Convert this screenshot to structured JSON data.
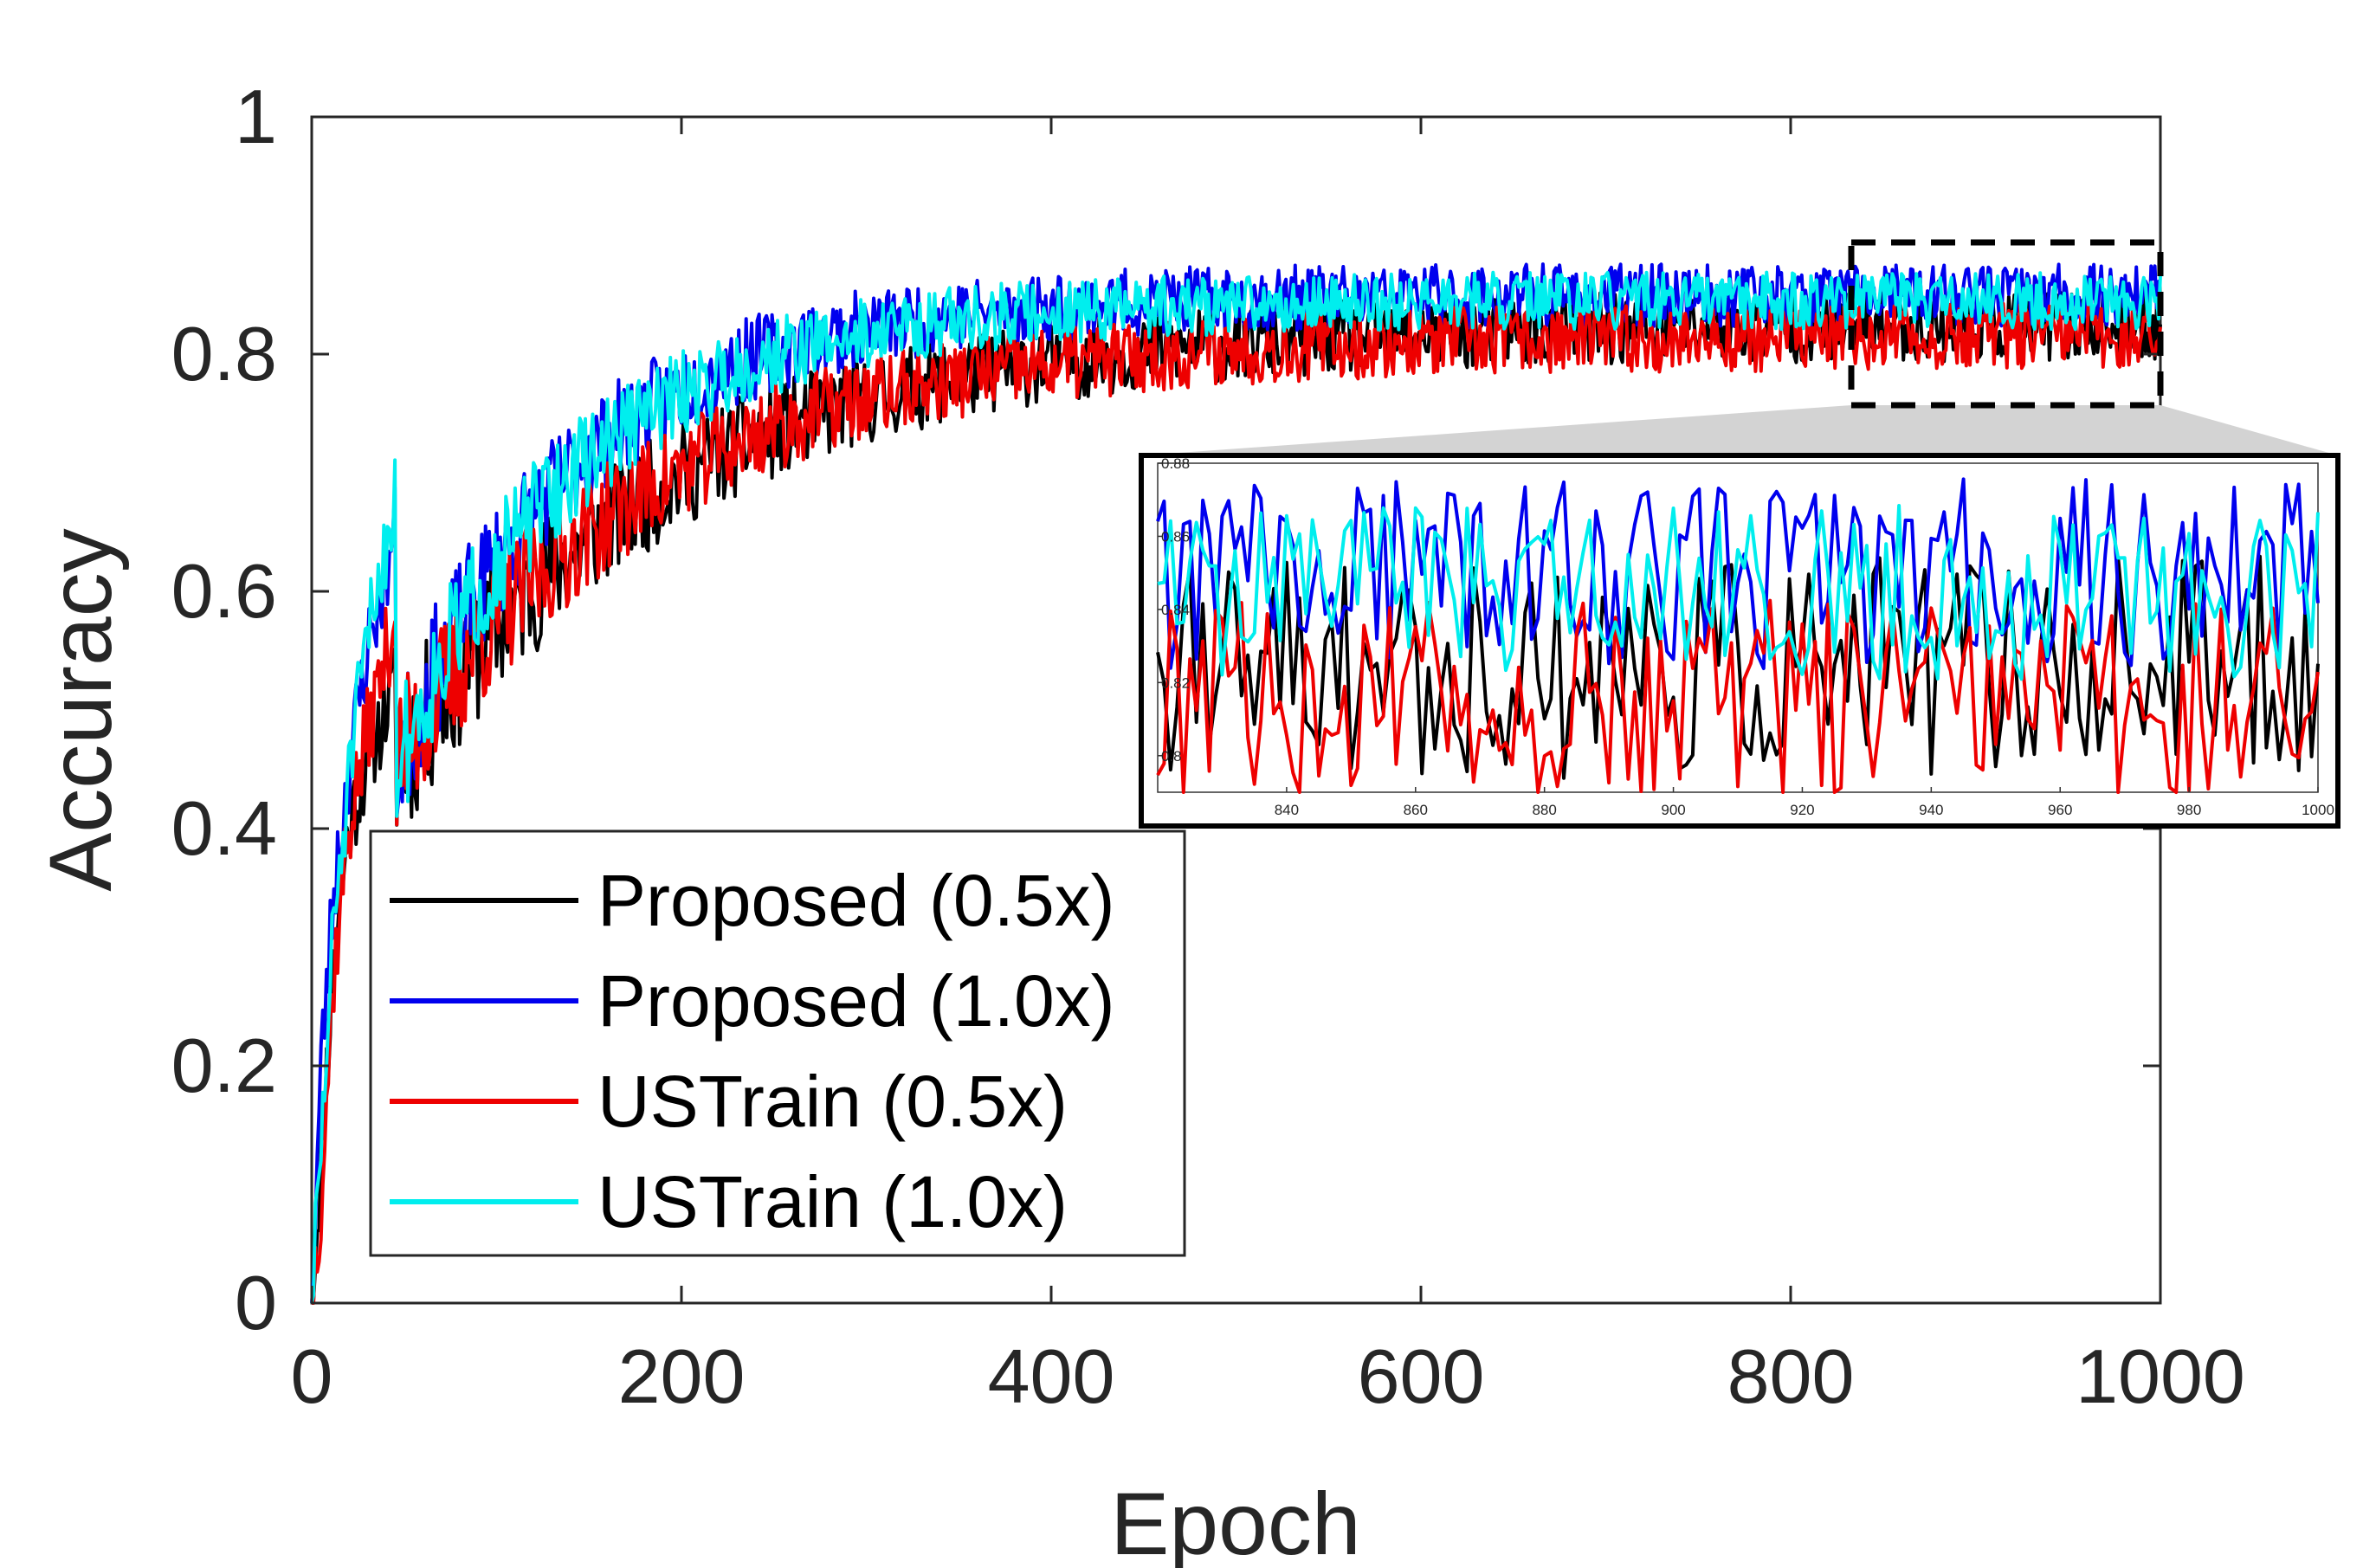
{
  "chart_data": {
    "type": "line",
    "xlabel": "Epoch",
    "ylabel": "Accuracy",
    "xlim": [
      0,
      1000
    ],
    "ylim": [
      0,
      1
    ],
    "xticks": [
      "0",
      "200",
      "400",
      "600",
      "800",
      "1000"
    ],
    "yticks": [
      "0",
      "0.2",
      "0.4",
      "0.6",
      "0.8",
      "1"
    ],
    "legend_position": "bottom-left",
    "series": [
      {
        "name": "Proposed (0.5x)",
        "color": "#000000",
        "final": 0.825,
        "rate": 24,
        "amp": 0.03,
        "seed": 11,
        "start": [
          [
            0,
            0.0
          ],
          [
            5,
            0.12
          ],
          [
            12,
            0.3
          ],
          [
            20,
            0.4
          ],
          [
            30,
            0.46
          ],
          [
            45,
            0.52
          ]
        ]
      },
      {
        "name": "Proposed (1.0x)",
        "color": "#0000ee",
        "final": 0.85,
        "rate": 16,
        "amp": 0.026,
        "seed": 23,
        "start": [
          [
            0,
            0.0
          ],
          [
            5,
            0.2
          ],
          [
            12,
            0.35
          ],
          [
            20,
            0.45
          ],
          [
            30,
            0.55
          ],
          [
            45,
            0.65
          ]
        ]
      },
      {
        "name": "USTrain (0.5x)",
        "color": "#ee0000",
        "final": 0.815,
        "rate": 22,
        "amp": 0.028,
        "seed": 37,
        "start": [
          [
            0,
            0.0
          ],
          [
            5,
            0.09
          ],
          [
            12,
            0.28
          ],
          [
            20,
            0.4
          ],
          [
            30,
            0.48
          ],
          [
            45,
            0.58
          ]
        ]
      },
      {
        "name": "USTrain (1.0x)",
        "color": "#00eeee",
        "final": 0.845,
        "rate": 16,
        "amp": 0.024,
        "seed": 51,
        "start": [
          [
            0,
            0.0
          ],
          [
            5,
            0.13
          ],
          [
            12,
            0.32
          ],
          [
            20,
            0.44
          ],
          [
            30,
            0.56
          ],
          [
            45,
            0.68
          ]
        ]
      }
    ],
    "inset": {
      "xlim": [
        820,
        1000
      ],
      "ylim": [
        0.79,
        0.88
      ],
      "xticks": [
        "840",
        "860",
        "880",
        "900",
        "920",
        "940",
        "960",
        "980",
        "1000"
      ],
      "yticks": [
        "0.8",
        "0.82",
        "0.84",
        "0.86",
        "0.88"
      ]
    }
  }
}
